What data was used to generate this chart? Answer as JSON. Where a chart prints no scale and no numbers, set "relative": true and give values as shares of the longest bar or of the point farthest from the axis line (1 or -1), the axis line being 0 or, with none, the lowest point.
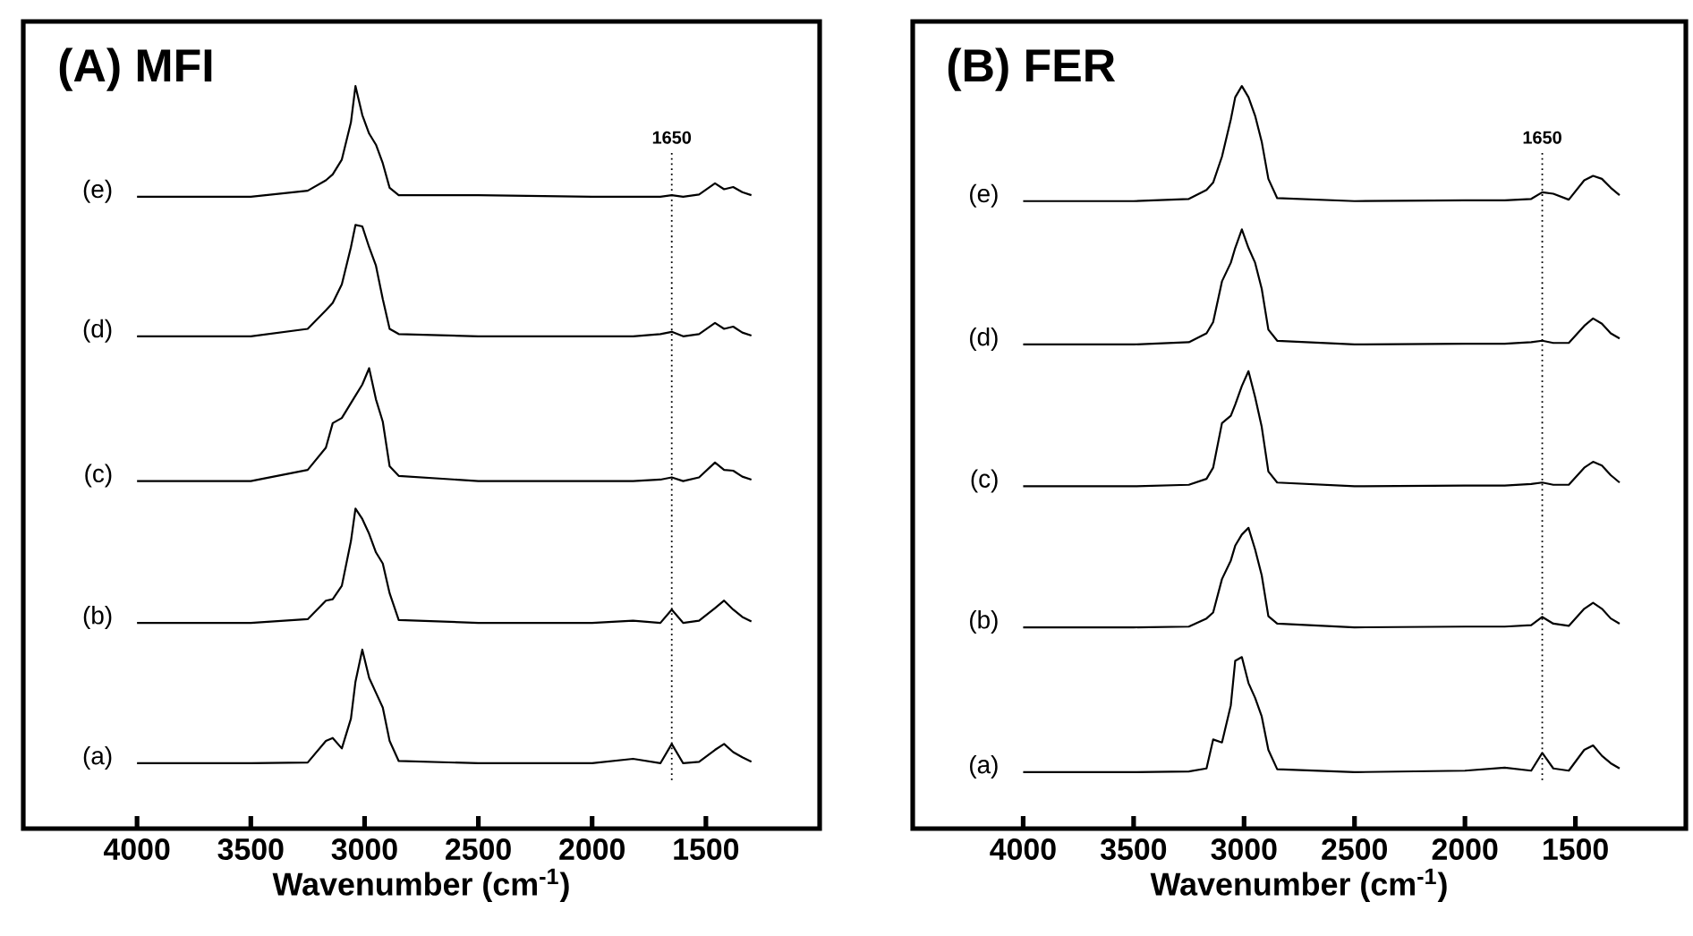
{
  "chart_data": [
    {
      "type": "line",
      "title": "(A) MFI",
      "xlabel": "Wavenumber (cm$^{-1}$)",
      "relative": true,
      "tick_labels": "x",
      "marker": "none",
      "line_style": "solid",
      "xlim": [
        4500,
        1000
      ],
      "xticks": [
        4000,
        3500,
        3000,
        2500,
        2000,
        1500
      ],
      "x": [
        4000,
        3500,
        3250,
        3170,
        3140,
        3100,
        3060,
        3040,
        3010,
        2980,
        2950,
        2920,
        2890,
        2850,
        2500,
        2000,
        1820,
        1700,
        1650,
        1600,
        1530,
        1460,
        1420,
        1380,
        1340,
        1300
      ],
      "series": [
        {
          "name": "(a)",
          "color": "#000000",
          "values": [
            0.088,
            0.088,
            0.089,
            0.118,
            0.122,
            0.108,
            0.148,
            0.198,
            0.241,
            0.203,
            0.183,
            0.163,
            0.118,
            0.091,
            0.088,
            0.088,
            0.094,
            0.088,
            0.114,
            0.088,
            0.09,
            0.106,
            0.114,
            0.103,
            0.096,
            0.09
          ]
        },
        {
          "name": "(b)",
          "color": "#000000",
          "values": [
            0.277,
            0.277,
            0.282,
            0.307,
            0.309,
            0.327,
            0.387,
            0.431,
            0.417,
            0.397,
            0.372,
            0.357,
            0.317,
            0.281,
            0.277,
            0.277,
            0.28,
            0.277,
            0.295,
            0.277,
            0.28,
            0.297,
            0.307,
            0.295,
            0.285,
            0.279
          ]
        },
        {
          "name": "(c)",
          "color": "#000000",
          "values": [
            0.468,
            0.468,
            0.483,
            0.513,
            0.546,
            0.553,
            0.573,
            0.583,
            0.598,
            0.62,
            0.578,
            0.548,
            0.488,
            0.475,
            0.468,
            0.468,
            0.468,
            0.47,
            0.473,
            0.468,
            0.473,
            0.493,
            0.483,
            0.482,
            0.474,
            0.47
          ]
        },
        {
          "name": "(d)",
          "color": "#000000",
          "values": [
            0.663,
            0.663,
            0.673,
            0.698,
            0.708,
            0.733,
            0.783,
            0.813,
            0.811,
            0.783,
            0.758,
            0.713,
            0.673,
            0.666,
            0.663,
            0.663,
            0.663,
            0.666,
            0.669,
            0.663,
            0.666,
            0.681,
            0.673,
            0.676,
            0.668,
            0.664
          ]
        },
        {
          "name": "(e)",
          "color": "#000000",
          "values": [
            0.851,
            0.851,
            0.859,
            0.873,
            0.881,
            0.901,
            0.951,
            1.0,
            0.961,
            0.936,
            0.921,
            0.896,
            0.863,
            0.853,
            0.853,
            0.851,
            0.851,
            0.851,
            0.853,
            0.851,
            0.854,
            0.869,
            0.861,
            0.864,
            0.857,
            0.853
          ]
        }
      ],
      "ref_lines": [
        {
          "axis": "x",
          "value": 1650,
          "label": "1650",
          "line_style": "dotted",
          "color": "#000000"
        }
      ]
    },
    {
      "type": "line",
      "title": "(B) FER",
      "xlabel": "Wavenumber (cm$^{-1}$)",
      "relative": true,
      "tick_labels": "x",
      "marker": "none",
      "line_style": "solid",
      "xlim": [
        4500,
        1000
      ],
      "xticks": [
        4000,
        3500,
        3000,
        2500,
        2000,
        1500
      ],
      "x": [
        4000,
        3500,
        3250,
        3170,
        3140,
        3100,
        3060,
        3040,
        3010,
        2980,
        2950,
        2920,
        2890,
        2850,
        2500,
        2000,
        1820,
        1700,
        1650,
        1600,
        1530,
        1460,
        1420,
        1380,
        1340,
        1300
      ],
      "series": [
        {
          "name": "(a)",
          "color": "#000000",
          "values": [
            0.076,
            0.076,
            0.077,
            0.081,
            0.12,
            0.116,
            0.166,
            0.226,
            0.231,
            0.196,
            0.176,
            0.151,
            0.106,
            0.08,
            0.076,
            0.078,
            0.082,
            0.078,
            0.102,
            0.081,
            0.078,
            0.106,
            0.112,
            0.098,
            0.088,
            0.081
          ]
        },
        {
          "name": "(b)",
          "color": "#000000",
          "values": [
            0.271,
            0.271,
            0.272,
            0.283,
            0.291,
            0.336,
            0.361,
            0.381,
            0.396,
            0.405,
            0.376,
            0.341,
            0.286,
            0.276,
            0.271,
            0.272,
            0.272,
            0.274,
            0.285,
            0.276,
            0.273,
            0.296,
            0.304,
            0.296,
            0.283,
            0.276
          ]
        },
        {
          "name": "(c)",
          "color": "#000000",
          "values": [
            0.461,
            0.461,
            0.463,
            0.471,
            0.486,
            0.546,
            0.556,
            0.571,
            0.596,
            0.616,
            0.581,
            0.541,
            0.481,
            0.466,
            0.461,
            0.462,
            0.462,
            0.464,
            0.466,
            0.463,
            0.463,
            0.486,
            0.494,
            0.489,
            0.476,
            0.466
          ]
        },
        {
          "name": "(d)",
          "color": "#000000",
          "values": [
            0.652,
            0.652,
            0.655,
            0.667,
            0.682,
            0.737,
            0.762,
            0.782,
            0.807,
            0.782,
            0.762,
            0.727,
            0.672,
            0.657,
            0.652,
            0.653,
            0.653,
            0.655,
            0.657,
            0.654,
            0.654,
            0.677,
            0.687,
            0.68,
            0.667,
            0.66
          ]
        },
        {
          "name": "(e)",
          "color": "#000000",
          "values": [
            0.845,
            0.845,
            0.848,
            0.86,
            0.87,
            0.905,
            0.955,
            0.985,
            1.0,
            0.985,
            0.96,
            0.925,
            0.875,
            0.849,
            0.845,
            0.846,
            0.846,
            0.848,
            0.857,
            0.855,
            0.847,
            0.873,
            0.879,
            0.875,
            0.863,
            0.853
          ]
        }
      ],
      "ref_lines": [
        {
          "axis": "x",
          "value": 1650,
          "label": "1650",
          "line_style": "dotted",
          "color": "#000000"
        }
      ]
    }
  ]
}
